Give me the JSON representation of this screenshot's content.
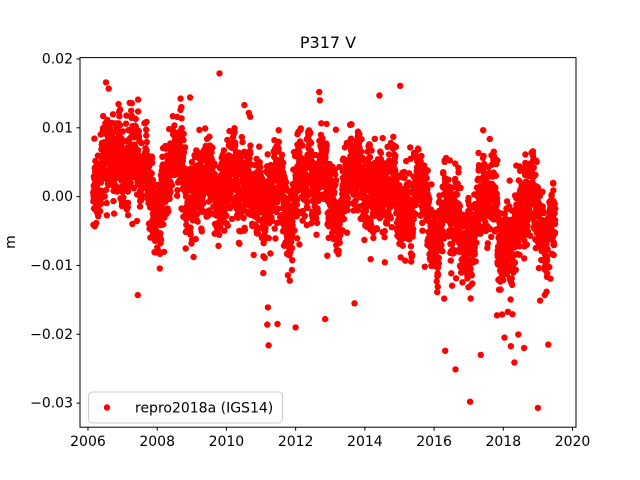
{
  "figure": {
    "background": "#ffffff"
  },
  "chart_data": {
    "type": "scatter",
    "title": "P317 V",
    "xlabel": "",
    "ylabel": "m",
    "xlim": [
      2005.77,
      2020.1
    ],
    "ylim": [
      -0.0335,
      0.0202
    ],
    "grid": false,
    "xticks": {
      "values": [
        2006,
        2008,
        2010,
        2012,
        2014,
        2016,
        2018,
        2020
      ],
      "labels": [
        "2006",
        "2008",
        "2010",
        "2012",
        "2014",
        "2016",
        "2018",
        "2020"
      ]
    },
    "yticks": {
      "values": [
        0.02,
        0.01,
        0.0,
        -0.01,
        -0.02,
        -0.03
      ],
      "labels": [
        "0.02",
        "0.01",
        "0.00",
        "−0.01",
        "−0.02",
        "−0.03"
      ]
    },
    "legend": {
      "label": "repro2018a (IGS14)",
      "position": "lower left",
      "border_color": "#cccccc",
      "background": "#ffffff"
    },
    "series": [
      {
        "name": "repro2018a (IGS14)",
        "color": "#ff0000",
        "marker": "circle",
        "marker_radius_px": 3.2,
        "description": "Daily GPS vertical (V) position time series for station P317, ~2006.15 to ~2019.5, mean declining from about +0.004 m to -0.006 m with annual oscillation (~0.0026 m amplitude), scatter sigma ~0.0036 m, and sporadic downward outliers reaching -0.031 m (mostly after 2016)",
        "generation": {
          "seed": 42,
          "t_start": 2006.15,
          "t_end": 2019.5,
          "points_per_year": 330,
          "trend_anchors": [
            [
              2006.15,
              0.004
            ],
            [
              2007.0,
              0.0036
            ],
            [
              2008.0,
              0.0031
            ],
            [
              2009.0,
              0.0028
            ],
            [
              2010.0,
              0.0021
            ],
            [
              2011.0,
              0.0013
            ],
            [
              2012.0,
              0.0012
            ],
            [
              2013.0,
              0.0009
            ],
            [
              2014.0,
              0.0008
            ],
            [
              2015.0,
              0.0002
            ],
            [
              2016.0,
              -0.0012
            ],
            [
              2017.0,
              -0.0038
            ],
            [
              2018.0,
              -0.005
            ],
            [
              2019.0,
              -0.0052
            ],
            [
              2019.5,
              -0.0058
            ]
          ],
          "seasonal_amplitude": 0.0026,
          "seasonal_peak": 0.55,
          "noise_sigma": 0.0026,
          "walk_sigma": 0.0006,
          "walk_decay": 0.97,
          "lower_tail": {
            "prob": 0.01,
            "scale": 0.0045,
            "late_prob": 0.035,
            "late_start": 2016.0,
            "late_scale": 0.0055
          },
          "upper_tail": {
            "prob": 0.006,
            "scale": 0.0028
          },
          "clip_min": -0.0262,
          "clip_max": 0.016
        },
        "outliers": [
          [
            2006.52,
            0.0166
          ],
          [
            2006.6,
            0.0157
          ],
          [
            2007.45,
            0.0141
          ],
          [
            2008.95,
            0.0144
          ],
          [
            2009.8,
            0.0179
          ],
          [
            2010.52,
            0.0133
          ],
          [
            2012.68,
            0.0152
          ],
          [
            2012.7,
            0.014
          ],
          [
            2014.42,
            0.0147
          ],
          [
            2015.02,
            0.0161
          ],
          [
            2007.44,
            -0.0143
          ],
          [
            2011.18,
            -0.0186
          ],
          [
            2011.2,
            -0.0161
          ],
          [
            2011.22,
            -0.0216
          ],
          [
            2012.0,
            -0.019
          ],
          [
            2012.85,
            -0.0178
          ],
          [
            2013.7,
            -0.0155
          ],
          [
            2016.32,
            -0.0224
          ],
          [
            2016.62,
            -0.0251
          ],
          [
            2017.04,
            -0.0298
          ],
          [
            2017.35,
            -0.023
          ],
          [
            2018.32,
            -0.0241
          ],
          [
            2018.6,
            -0.022
          ],
          [
            2019.0,
            -0.0307
          ],
          [
            2019.3,
            -0.0215
          ]
        ]
      }
    ]
  }
}
